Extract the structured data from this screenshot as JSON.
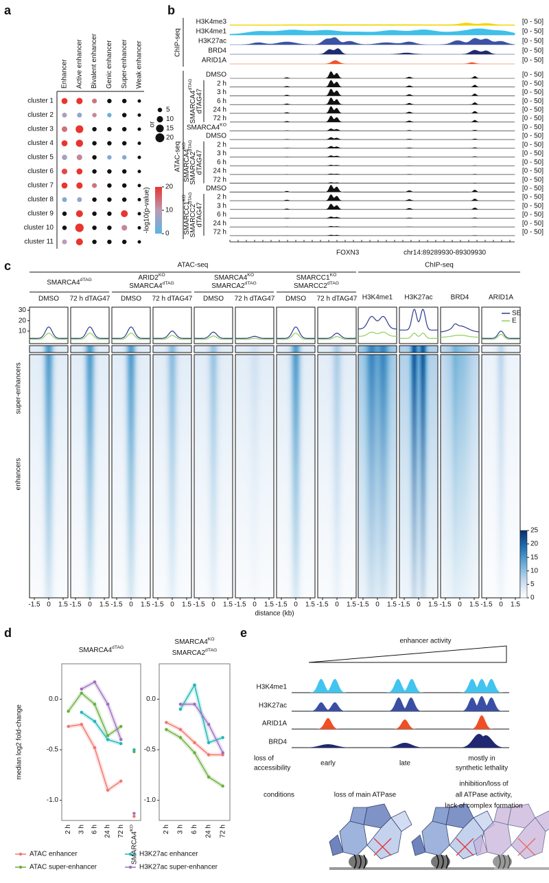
{
  "panel_labels": [
    "a",
    "b",
    "c",
    "d",
    "e"
  ],
  "chart_data": [
    {
      "type": "dot",
      "columns": [
        "Enhancer",
        "Active enhancer",
        "Bivalent enhancer",
        "Genic enhancer",
        "Super-enhancer",
        "Weak enhancer"
      ],
      "rows": [
        "cluster 1",
        "cluster 2",
        "cluster 3",
        "cluster 4",
        "cluster 5",
        "cluster 6",
        "cluster 7",
        "cluster 8",
        "cluster 9",
        "cluster 10",
        "cluster 11"
      ],
      "size_label": "or",
      "size_ticks": [
        5,
        10,
        15,
        20
      ],
      "color_label": "-log10(p-value)",
      "color_lim": [
        0,
        20
      ],
      "color_ticks": [
        0,
        10,
        20
      ],
      "colors": [
        "#5ab4e5",
        "#bb9cb6",
        "#e8352e"
      ],
      "not_significant_color": "#111111",
      "size": [
        [
          9,
          10,
          6,
          5,
          5,
          3
        ],
        [
          6,
          6,
          5,
          5,
          5,
          3
        ],
        [
          8,
          15,
          5,
          5,
          5,
          3
        ],
        [
          9,
          13,
          5,
          5,
          5,
          3
        ],
        [
          7,
          8,
          5,
          5,
          5,
          3
        ],
        [
          8,
          9,
          5,
          5,
          5,
          3
        ],
        [
          9,
          10,
          6,
          5,
          5,
          3
        ],
        [
          6,
          6,
          5,
          5,
          5,
          3
        ],
        [
          5,
          12,
          5,
          5,
          12,
          3
        ],
        [
          5,
          18,
          5,
          5,
          8,
          3
        ],
        [
          6,
          12,
          5,
          5,
          5,
          3
        ]
      ],
      "pvalue": [
        [
          20,
          20,
          14,
          null,
          null,
          null
        ],
        [
          8,
          6,
          12,
          2,
          null,
          null
        ],
        [
          14,
          20,
          null,
          null,
          null,
          null
        ],
        [
          20,
          20,
          null,
          null,
          null,
          null
        ],
        [
          8,
          12,
          null,
          4,
          4,
          null
        ],
        [
          18,
          20,
          null,
          null,
          null,
          null
        ],
        [
          20,
          20,
          14,
          null,
          null,
          null
        ],
        [
          4,
          6,
          null,
          null,
          null,
          null
        ],
        [
          null,
          20,
          null,
          null,
          20,
          null
        ],
        [
          null,
          20,
          null,
          null,
          12,
          null
        ],
        [
          10,
          20,
          null,
          null,
          null,
          null
        ]
      ]
    },
    {
      "type": "line",
      "title": {
        "text": "SMARCA4",
        "sup": "dTAG"
      },
      "y_label": "median log2 fold-change",
      "categories": [
        "2 h",
        "3 h",
        "6 h",
        "24 h",
        "72 h"
      ],
      "ko_category": {
        "text": "SMARCA4",
        "sup": "KO"
      },
      "ylim": [
        -1.2,
        0.35
      ],
      "yticks": [
        {
          "value": -1,
          "label": "-1.0"
        },
        -0.5,
        {
          "value": 0,
          "label": "0.0"
        }
      ],
      "series": [
        {
          "name": "ATAC enhancer",
          "color": "#f0756e",
          "values": [
            -0.27,
            -0.25,
            -0.48,
            -0.9,
            -0.81
          ],
          "ko_value": -1.16
        },
        {
          "name": "ATAC super-enhancer",
          "color": "#6aaf3d",
          "values": [
            -0.12,
            0.06,
            -0.05,
            -0.36,
            -0.27
          ],
          "ko_value": -0.52
        },
        {
          "name": "H3K27ac enhancer",
          "color": "#1fb5b5",
          "values": [
            null,
            -0.13,
            -0.22,
            -0.4,
            -0.44
          ],
          "ko_value": -0.5
        },
        {
          "name": "H3K27ac super-enhancer",
          "color": "#9b6fc0",
          "values": [
            null,
            0.1,
            0.17,
            -0.05,
            -0.4
          ],
          "ko_value": -1.13
        }
      ]
    },
    {
      "type": "line",
      "title": [
        {
          "text": "SMARCA4",
          "sup": "KO"
        },
        {
          "text": "SMARCA2",
          "sup": "dTAG"
        }
      ],
      "categories": [
        "2 h",
        "3 h",
        "6 h",
        "24 h",
        "72 h"
      ],
      "ylim": [
        -1.2,
        0.35
      ],
      "yticks": [
        {
          "value": -1,
          "label": "-1.0"
        },
        -0.5,
        {
          "value": 0,
          "label": "0.0"
        }
      ],
      "series": [
        {
          "color": "#f0756e",
          "values": [
            -0.23,
            -0.3,
            -0.43,
            -0.55,
            -0.55
          ]
        },
        {
          "color": "#6aaf3d",
          "values": [
            -0.3,
            -0.38,
            -0.53,
            -0.77,
            -0.86
          ]
        },
        {
          "color": "#1fb5b5",
          "values": [
            null,
            -0.1,
            0.14,
            -0.43,
            -0.38
          ]
        },
        {
          "color": "#9b6fc0",
          "values": [
            null,
            -0.05,
            -0.05,
            -0.25,
            -0.53
          ]
        }
      ]
    }
  ],
  "panel_b": {
    "chip_label": "ChIP-seq",
    "atac_label": "ATAC-seq",
    "range_label": "[0 - 50]",
    "chip_tracks": [
      {
        "name": "H3K4me3",
        "color": "#f2d600"
      },
      {
        "name": "H3K4me1",
        "color": "#3fbfea"
      },
      {
        "name": "H3K27ac",
        "color": "#3a53a4"
      },
      {
        "name": "BRD4",
        "color": "#1f2d6e"
      },
      {
        "name": "ARID1A",
        "color": "#f0522b"
      }
    ],
    "atac_groups": [
      {
        "labels": [
          {
            "text": "SMARCA4",
            "sup": "dTAG"
          }
        ],
        "sublabel": "dTAG47",
        "tracks": [
          "DMSO",
          "2 h",
          "3 h",
          "6 h",
          "24 h",
          "72 h"
        ]
      },
      {
        "tracks": [
          {
            "text": "SMARCA4",
            "sup": "KO"
          }
        ]
      },
      {
        "labels": [
          {
            "text": "SMARCA4",
            "sup": "KO"
          },
          {
            "text": "SMARCA2",
            "sup": "dTAG"
          }
        ],
        "sublabel": "dTAG47",
        "tracks": [
          "DMSO",
          "2 h",
          "3 h",
          "6 h",
          "24 h",
          "72 h"
        ]
      },
      {
        "labels": [
          {
            "text": "SMARCC1",
            "sup": "KO"
          },
          {
            "text": "SMARCC2",
            "sup": "dTAG"
          }
        ],
        "sublabel": "dTAG47",
        "tracks": [
          "DMSO",
          "2 h",
          "3 h",
          "6 h",
          "24 h",
          "72 h"
        ]
      }
    ],
    "gene": "FOXN3",
    "locus": "chr14:89289930-89309930"
  },
  "panel_c": {
    "atac_label": "ATAC-seq",
    "chip_label": "ChIP-seq",
    "atac_groups": [
      {
        "labels": [
          {
            "text": "SMARCA4",
            "sup": "dTAG"
          }
        ],
        "conditions": [
          "DMSO",
          "72 h dTAG47"
        ]
      },
      {
        "labels": [
          {
            "text": "ARID2",
            "sup": "KO"
          },
          {
            "text": "SMARCA4",
            "sup": "dTAG"
          }
        ],
        "conditions": [
          "DMSO",
          "72 h dTAG47"
        ]
      },
      {
        "labels": [
          {
            "text": "SMARCA4",
            "sup": "KO"
          },
          {
            "text": "SMARCA2",
            "sup": "dTAG"
          }
        ],
        "conditions": [
          "DMSO",
          "72 h dTAG47"
        ]
      },
      {
        "labels": [
          {
            "text": "SMARCC1",
            "sup": "KO"
          },
          {
            "text": "SMARCC2",
            "sup": "dTAG"
          }
        ],
        "conditions": [
          "DMSO",
          "72 h dTAG47"
        ]
      }
    ],
    "chip_columns": [
      "H3K4me1",
      "H3K27ac",
      "BRD4",
      "ARID1A"
    ],
    "profile_ylim": [
      -2,
      33
    ],
    "profile_yticks": [
      10,
      20,
      30
    ],
    "profile_series": [
      {
        "name": "SE",
        "color": "#2b3a8c"
      },
      {
        "name": "E",
        "color": "#8dcf5a"
      }
    ],
    "row_labels": [
      "super-enhancers",
      "enhancers"
    ],
    "xlim": [
      -2,
      2
    ],
    "xticks": [
      -1.5,
      0,
      1.5
    ],
    "x_label": "distance (kb)",
    "colorbar_lim": [
      0,
      25
    ],
    "colorbar_ticks": [
      0,
      5,
      10,
      15,
      20,
      25
    ]
  },
  "panel_e": {
    "title": "enhancer activity",
    "marks": [
      "H3K4me1",
      "H3K27ac",
      "ARID1A",
      "BRD4"
    ],
    "accessibility_label": [
      "loss of",
      "accessibility"
    ],
    "timing": [
      [
        "early"
      ],
      [
        "late"
      ],
      [
        "mostly in",
        "synthetic lethality"
      ]
    ],
    "conditions_label": "conditions",
    "conditions": [
      [
        "loss of main ATPase"
      ],
      [
        "inhibition/loss of",
        "all ATPase activity,",
        "lack of complex formation"
      ]
    ]
  }
}
